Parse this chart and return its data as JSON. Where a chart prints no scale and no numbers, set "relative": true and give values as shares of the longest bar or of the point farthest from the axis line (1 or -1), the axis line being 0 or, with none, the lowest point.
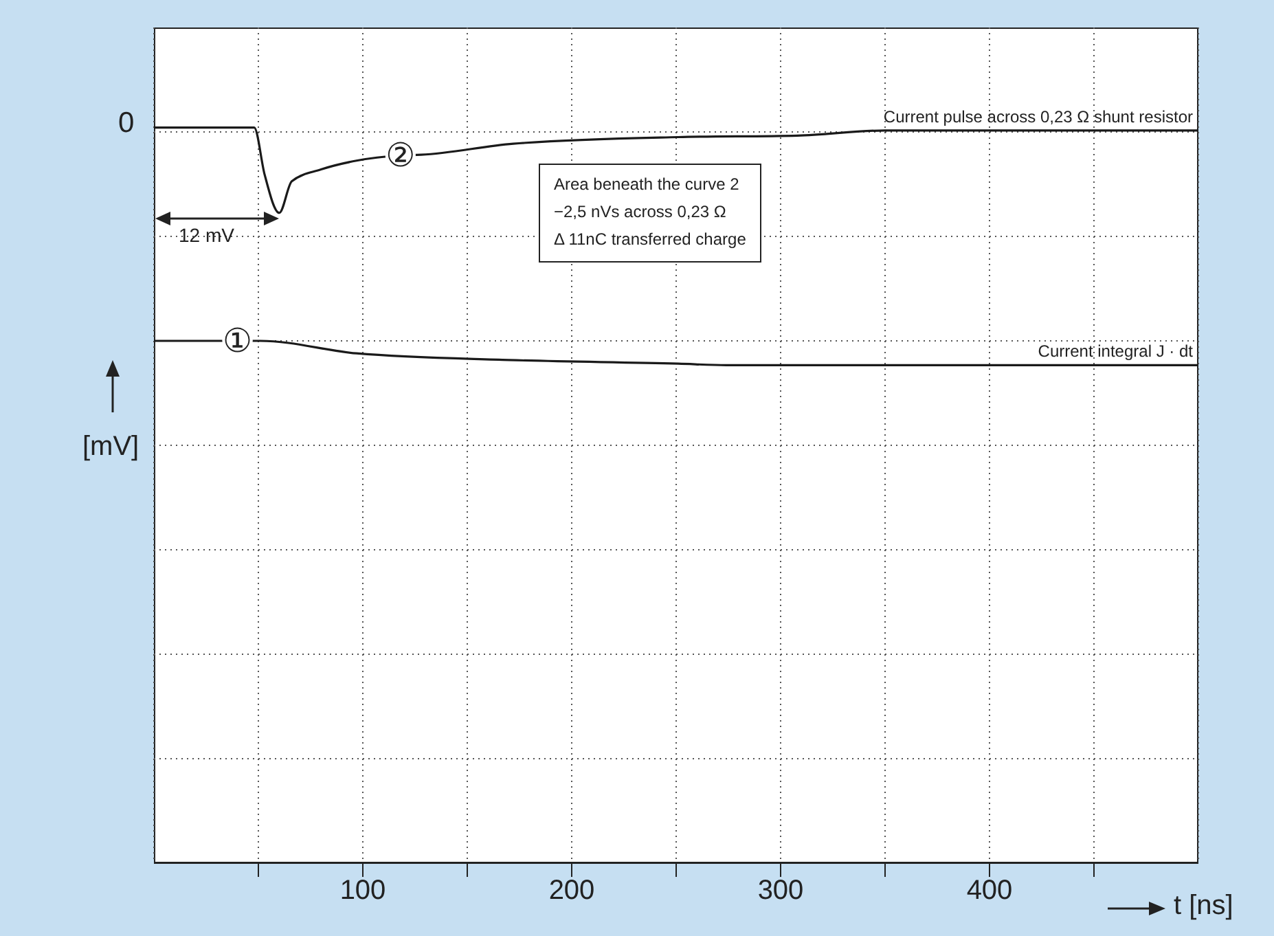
{
  "chart_data": {
    "type": "line",
    "relative": true,
    "xlabel": "t [ns]",
    "ylabel": "[mV]",
    "xlim": [
      0,
      500
    ],
    "xticks": [
      {
        "value": 50,
        "label": null
      },
      100,
      {
        "value": 150,
        "label": null
      },
      200,
      {
        "value": 250,
        "label": null
      },
      300,
      {
        "value": 350,
        "label": null
      },
      400,
      {
        "value": 450,
        "label": null
      }
    ],
    "grid": true,
    "marker": "none",
    "line_style": "solid",
    "annotations": [
      "0",
      "12 mV",
      "Area beneath the curve 2\n−2,5 nVs across 0,23 Ω\nΔ 11nC transferred charge",
      {
        "text": "②",
        "x": 118,
        "y": 0.962
      },
      {
        "text": "①",
        "x": 40,
        "y": 0.71
      }
    ],
    "series": [
      {
        "name": "Current pulse across 0,23 Ω shunt resistor",
        "color": "#1a1a1a",
        "x": [
          0,
          48,
          53,
          60,
          66,
          80,
          97,
          118,
          128,
          172,
          251,
          308,
          350,
          500
        ],
        "values": [
          1.0,
          1.0,
          0.936,
          0.884,
          0.927,
          0.943,
          0.955,
          0.962,
          0.963,
          0.978,
          0.987,
          0.989,
          0.996,
          0.996
        ]
      },
      {
        "name": "Current integral J · dt",
        "color": "#1a1a1a",
        "x": [
          0,
          51,
          97,
          170,
          251,
          274,
          500
        ],
        "values": [
          0.71,
          0.71,
          0.693,
          0.684,
          0.679,
          0.677,
          0.677
        ]
      }
    ]
  }
}
